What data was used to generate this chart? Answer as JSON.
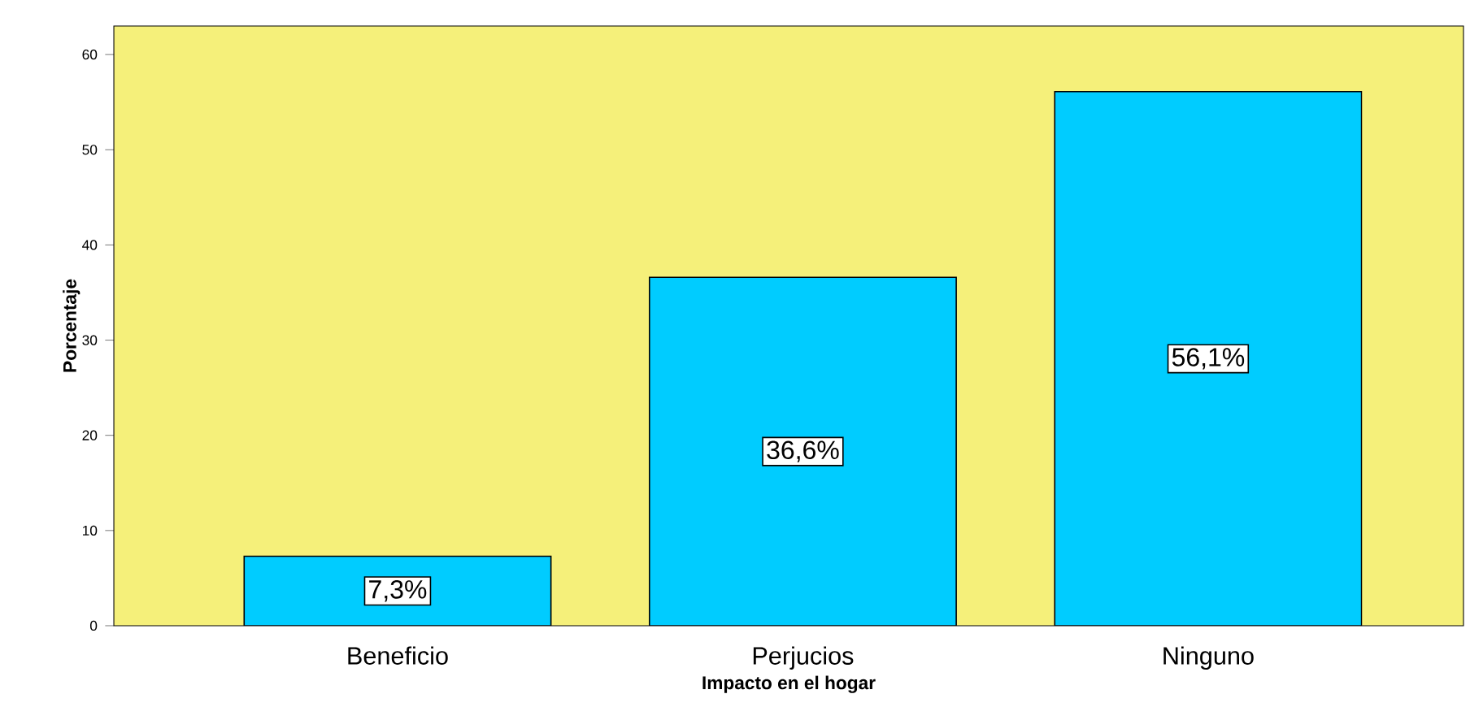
{
  "chart_data": {
    "type": "bar",
    "xlabel": "Impacto en el hogar",
    "ylabel": "Porcentaje",
    "categories": [
      "Beneficio",
      "Perjucios",
      "Ninguno"
    ],
    "values": [
      7.3,
      36.6,
      56.1
    ],
    "value_labels": [
      "7,3%",
      "36,6%",
      "56,1%"
    ],
    "color": "#00ccff",
    "ylim": [
      0,
      63
    ],
    "yticks": [
      0,
      10,
      20,
      30,
      40,
      50,
      60
    ],
    "grid": false
  }
}
